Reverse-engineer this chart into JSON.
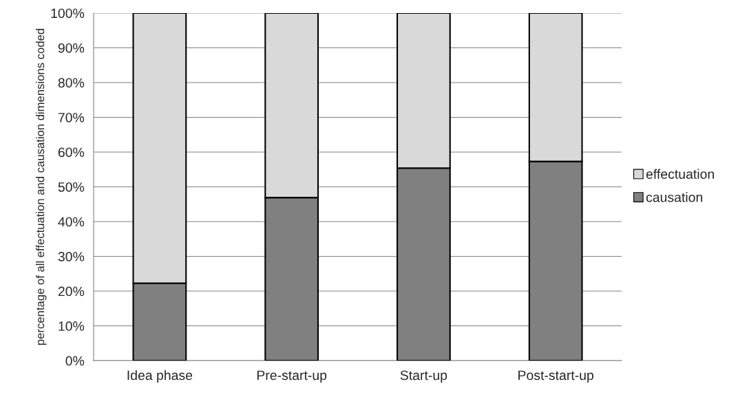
{
  "chart_data": {
    "type": "bar",
    "stacked": true,
    "ylabel": "percentage of all effectuation and causation dimensions coded",
    "categories": [
      "Idea phase",
      "Pre-start-up",
      "Start-up",
      "Post-start-up"
    ],
    "series": [
      {
        "name": "causation",
        "color": "#808080",
        "values": [
          22.3,
          46.9,
          55.4,
          57.3
        ]
      },
      {
        "name": "effectuation",
        "color": "#d9d9d9",
        "values": [
          77.7,
          53.1,
          44.6,
          42.7
        ]
      }
    ],
    "ylim": [
      0,
      100
    ],
    "yticks": [
      {
        "value": 0,
        "label": "0%"
      },
      {
        "value": 10,
        "label": "10%"
      },
      {
        "value": 20,
        "label": "20%"
      },
      {
        "value": 30,
        "label": "30%"
      },
      {
        "value": 40,
        "label": "40%"
      },
      {
        "value": 50,
        "label": "50%"
      },
      {
        "value": 60,
        "label": "60%"
      },
      {
        "value": 70,
        "label": "70%"
      },
      {
        "value": 80,
        "label": "80%"
      },
      {
        "value": 90,
        "label": "90%"
      },
      {
        "value": 100,
        "label": "100%"
      }
    ],
    "grid": "y",
    "legend": "right"
  }
}
